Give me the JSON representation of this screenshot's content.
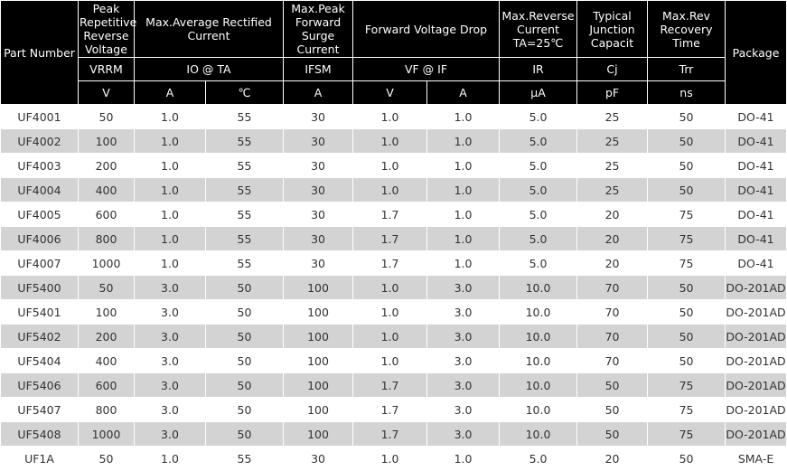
{
  "header": {
    "part_number": "Part Number",
    "vrrm_title": "Peak Repetitive Reverse Voltage",
    "io_title": "Max.Average Rectified Current",
    "ifsm_title": "Max.Peak Forward Surge Current",
    "vf_title": "Forward Voltage Drop",
    "ir_title": "Max.Reverse Current TA=25℃",
    "cj_title": "Typical Junction Capacit",
    "trr_title": "Max.Rev Recovery Time",
    "package": "Package",
    "sym_vrrm": "VRRM",
    "sym_io": "IO @ TA",
    "sym_ifsm": "IFSM",
    "sym_vf": "VF @ IF",
    "sym_ir": "IR",
    "sym_cj": "Cj",
    "sym_trr": "Trr",
    "unit_vrrm": "V",
    "unit_io": "A",
    "unit_ta": "℃",
    "unit_ifsm": "A",
    "unit_vf": "V",
    "unit_if": "A",
    "unit_ir": "μA",
    "unit_cj": "pF",
    "unit_trr": "ns"
  },
  "rows": [
    [
      "UF4001",
      "50",
      "1.0",
      "55",
      "30",
      "1.0",
      "1.0",
      "5.0",
      "25",
      "50",
      "DO-41"
    ],
    [
      "UF4002",
      "100",
      "1.0",
      "55",
      "30",
      "1.0",
      "1.0",
      "5.0",
      "25",
      "50",
      "DO-41"
    ],
    [
      "UF4003",
      "200",
      "1.0",
      "55",
      "30",
      "1.0",
      "1.0",
      "5.0",
      "25",
      "50",
      "DO-41"
    ],
    [
      "UF4004",
      "400",
      "1.0",
      "55",
      "30",
      "1.0",
      "1.0",
      "5.0",
      "25",
      "50",
      "DO-41"
    ],
    [
      "UF4005",
      "600",
      "1.0",
      "55",
      "30",
      "1.7",
      "1.0",
      "5.0",
      "20",
      "75",
      "DO-41"
    ],
    [
      "UF4006",
      "800",
      "1.0",
      "55",
      "30",
      "1.7",
      "1.0",
      "5.0",
      "20",
      "75",
      "DO-41"
    ],
    [
      "UF4007",
      "1000",
      "1.0",
      "55",
      "30",
      "1.7",
      "1.0",
      "5.0",
      "20",
      "75",
      "DO-41"
    ],
    [
      "UF5400",
      "50",
      "3.0",
      "50",
      "100",
      "1.0",
      "3.0",
      "10.0",
      "70",
      "50",
      "DO-201AD"
    ],
    [
      "UF5401",
      "100",
      "3.0",
      "50",
      "100",
      "1.0",
      "3.0",
      "10.0",
      "70",
      "50",
      "DO-201AD"
    ],
    [
      "UF5402",
      "200",
      "3.0",
      "50",
      "100",
      "1.0",
      "3.0",
      "10.0",
      "70",
      "50",
      "DO-201AD"
    ],
    [
      "UF5404",
      "400",
      "3.0",
      "50",
      "100",
      "1.0",
      "3.0",
      "10.0",
      "70",
      "50",
      "DO-201AD"
    ],
    [
      "UF5406",
      "600",
      "3.0",
      "50",
      "100",
      "1.7",
      "3.0",
      "10.0",
      "50",
      "75",
      "DO-201AD"
    ],
    [
      "UF5407",
      "800",
      "3.0",
      "50",
      "100",
      "1.7",
      "3.0",
      "10.0",
      "50",
      "75",
      "DO-201AD"
    ],
    [
      "UF5408",
      "1000",
      "3.0",
      "50",
      "100",
      "1.7",
      "3.0",
      "10.0",
      "50",
      "75",
      "DO-201AD"
    ],
    [
      "UF1A",
      "50",
      "1.0",
      "55",
      "30",
      "1.0",
      "1.0",
      "5.0",
      "20",
      "50",
      "SMA-E"
    ]
  ],
  "colors": {
    "header_bg": "#000000",
    "header_text": "#ffffff",
    "row_alt": "#d3d3d3",
    "row_base": "#ffffff",
    "cell_text": "#333333"
  }
}
